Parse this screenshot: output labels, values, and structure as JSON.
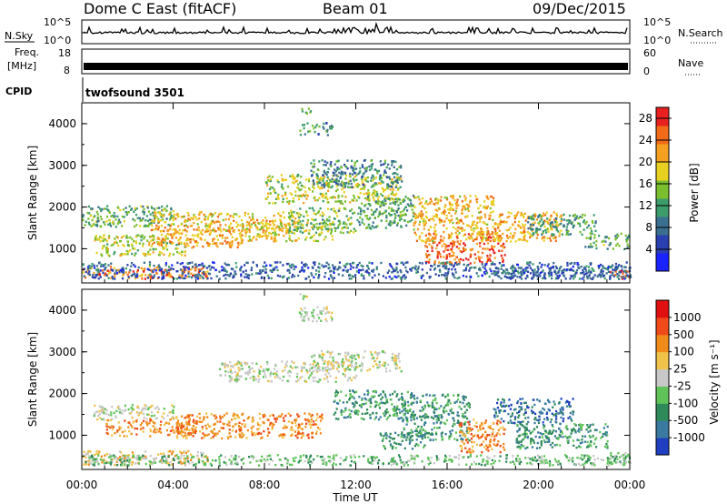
{
  "header": {
    "station": "Dome C East (fitACF)",
    "beam": "Beam 01",
    "date": "09/Dec/2015"
  },
  "param_panels": {
    "nsky_label": "N.Sky",
    "nsky_top": "10^5",
    "nsky_bottom": "10^0",
    "freq_label_top": "Freq.",
    "freq_label_unit": "[MHz]",
    "freq_tick_high": "18",
    "freq_tick_low": "8",
    "right_top_tick": "10^5",
    "right_bottom_tick": "10^0",
    "nsearch_label": "N.Search",
    "nave_label": "Nave",
    "nave_tick_high": "60",
    "nave_tick_low": "0",
    "cpid_label": "CPID",
    "cpid_value": "twofsound 3501"
  },
  "chart_data": [
    {
      "type": "heatmap",
      "panel": "power",
      "ylabel": "Slant Range [km]",
      "yticks": [
        "1000",
        "2000",
        "3000",
        "4000"
      ],
      "ylim": [
        180,
        4500
      ],
      "colorbar_label": "Power [dB]",
      "colorbar_ticks": [
        "4",
        "8",
        "12",
        "16",
        "20",
        "24",
        "28"
      ],
      "colorbar_range": [
        0,
        30
      ],
      "colorscale": [
        "#1a22ff",
        "#2a3fb0",
        "#3a6f8f",
        "#3c9c6c",
        "#7bbf2e",
        "#e8d020",
        "#f5a020",
        "#f06a18",
        "#e82020"
      ],
      "echo_bands": [
        {
          "t0": 0.0,
          "t1": 5.5,
          "r0": 300,
          "r1": 600,
          "val": 25
        },
        {
          "t0": 0.5,
          "t1": 4.5,
          "r0": 850,
          "r1": 1350,
          "val": 17
        },
        {
          "t0": 3.0,
          "t1": 7.0,
          "r0": 1050,
          "r1": 1500,
          "val": 22
        },
        {
          "t0": 0.0,
          "t1": 4.0,
          "r0": 1550,
          "r1": 2050,
          "val": 13
        },
        {
          "t0": 3.0,
          "t1": 9.5,
          "r0": 1450,
          "r1": 1900,
          "val": 21
        },
        {
          "t0": 7.0,
          "t1": 11.0,
          "r0": 1200,
          "r1": 1650,
          "val": 19
        },
        {
          "t0": 8.0,
          "t1": 14.0,
          "r0": 2100,
          "r1": 2800,
          "val": 17
        },
        {
          "t0": 10.0,
          "t1": 14.0,
          "r0": 2500,
          "r1": 3150,
          "val": 9
        },
        {
          "t0": 9.0,
          "t1": 12.0,
          "r0": 1400,
          "r1": 2000,
          "val": 14
        },
        {
          "t0": 12.0,
          "t1": 14.5,
          "r0": 1500,
          "r1": 2300,
          "val": 12
        },
        {
          "t0": 15.0,
          "t1": 18.5,
          "r0": 650,
          "r1": 1400,
          "val": 27
        },
        {
          "t0": 14.5,
          "t1": 18.0,
          "r0": 1200,
          "r1": 2300,
          "val": 21
        },
        {
          "t0": 18.0,
          "t1": 21.0,
          "r0": 1200,
          "r1": 1900,
          "val": 22
        },
        {
          "t0": 19.5,
          "t1": 22.5,
          "r0": 1350,
          "r1": 1850,
          "val": 11
        },
        {
          "t0": 18.0,
          "t1": 24.0,
          "r0": 300,
          "r1": 600,
          "val": 7
        },
        {
          "t0": 23.0,
          "t1": 24.0,
          "r0": 300,
          "r1": 500,
          "val": 26
        },
        {
          "t0": 22.0,
          "t1": 24.0,
          "r0": 1000,
          "r1": 1400,
          "val": 12
        },
        {
          "t0": 9.5,
          "t1": 11.0,
          "r0": 3750,
          "r1": 4050,
          "val": 10
        },
        {
          "t0": 9.5,
          "t1": 10.0,
          "r0": 4250,
          "r1": 4400,
          "val": 12
        },
        {
          "t0": 0.0,
          "t1": 24.0,
          "r0": 300,
          "r1": 700,
          "val": 6
        }
      ]
    },
    {
      "type": "heatmap",
      "panel": "velocity",
      "ylabel": "Slant Range [km]",
      "yticks": [
        "1000",
        "2000",
        "3000",
        "4000"
      ],
      "ylim": [
        180,
        4500
      ],
      "colorbar_label": "Velocity [m s⁻¹]",
      "colorbar_ticks": [
        "1000",
        "500",
        "100",
        "25",
        "-25",
        "-100",
        "-500",
        "-1000"
      ],
      "colorscale": [
        "#1f3fc0",
        "#3a7aa0",
        "#2e8a5a",
        "#5fc35a",
        "#c8c8c8",
        "#f0c24a",
        "#f08b1a",
        "#f04a1a",
        "#e01010"
      ],
      "echo_bands": [
        {
          "t0": 0.0,
          "t1": 5.5,
          "r0": 300,
          "r1": 650,
          "val": 5
        },
        {
          "t0": 0.5,
          "t1": 4.0,
          "r0": 1400,
          "r1": 1750,
          "val": 4
        },
        {
          "t0": 1.0,
          "t1": 5.0,
          "r0": 1000,
          "r1": 1400,
          "val": 6
        },
        {
          "t0": 4.0,
          "t1": 10.5,
          "r0": 950,
          "r1": 1550,
          "val": 6
        },
        {
          "t0": 6.0,
          "t1": 12.0,
          "r0": 2300,
          "r1": 2800,
          "val": 4
        },
        {
          "t0": 10.0,
          "t1": 14.0,
          "r0": 2550,
          "r1": 3050,
          "val": 4
        },
        {
          "t0": 11.0,
          "t1": 14.5,
          "r0": 1400,
          "r1": 2100,
          "val": 2
        },
        {
          "t0": 14.0,
          "t1": 17.0,
          "r0": 900,
          "r1": 2000,
          "val": 2
        },
        {
          "t0": 16.5,
          "t1": 18.5,
          "r0": 600,
          "r1": 1400,
          "val": 6
        },
        {
          "t0": 18.0,
          "t1": 21.5,
          "r0": 1300,
          "r1": 1900,
          "val": 1
        },
        {
          "t0": 19.0,
          "t1": 23.0,
          "r0": 700,
          "r1": 1300,
          "val": 2
        },
        {
          "t0": 0.0,
          "t1": 24.0,
          "r0": 300,
          "r1": 550,
          "val": 3
        },
        {
          "t0": 9.5,
          "t1": 11.0,
          "r0": 3750,
          "r1": 4100,
          "val": 4
        },
        {
          "t0": 9.5,
          "t1": 10.0,
          "r0": 4250,
          "r1": 4450,
          "val": 4
        },
        {
          "t0": 23.0,
          "t1": 24.0,
          "r0": 300,
          "r1": 600,
          "val": 3
        },
        {
          "t0": 13.0,
          "t1": 15.0,
          "r0": 700,
          "r1": 1100,
          "val": 2
        }
      ]
    }
  ],
  "x_axis": {
    "ticks": [
      "00:00",
      "04:00",
      "08:00",
      "12:00",
      "16:00",
      "20:00",
      "00:00"
    ],
    "label": "Time UT",
    "range_hours": [
      0,
      24
    ]
  }
}
